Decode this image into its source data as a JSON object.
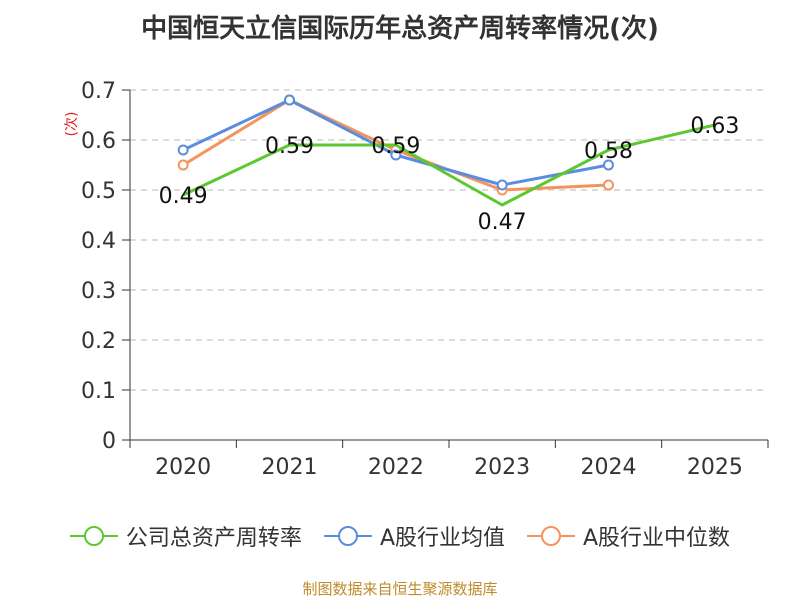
{
  "chart_data": {
    "type": "line",
    "title": "中国恒天立信国际历年总资产周转率情况(次)",
    "ylabel": "(次)",
    "xlabel": "",
    "categories": [
      "2020",
      "2021",
      "2022",
      "2023",
      "2024",
      "2025"
    ],
    "ylim": [
      0,
      0.7
    ],
    "yticks": [
      0,
      0.1,
      0.2,
      0.3,
      0.4,
      0.5,
      0.6,
      0.7
    ],
    "ytick_labels": [
      "0",
      "0.1",
      "0.2",
      "0.3",
      "0.4",
      "0.5",
      "0.6",
      "0.7"
    ],
    "grid": true,
    "legend_position": "bottom",
    "series": [
      {
        "name": "公司总资产周转率",
        "color": "#5cc82e",
        "values": [
          0.49,
          0.59,
          0.59,
          0.47,
          0.58,
          0.63
        ],
        "labels": [
          "0.49",
          "0.59",
          "0.59",
          "0.47",
          "0.58",
          "0.63"
        ],
        "show_markers": false
      },
      {
        "name": "A股行业均值",
        "color": "#5b8ce0",
        "values": [
          0.58,
          0.68,
          0.57,
          0.51,
          0.55,
          null
        ],
        "show_markers": true
      },
      {
        "name": "A股行业中位数",
        "color": "#f4935c",
        "values": [
          0.55,
          0.68,
          0.58,
          0.5,
          0.51,
          null
        ],
        "show_markers": true
      }
    ]
  },
  "source": "制图数据来自恒生聚源数据库"
}
